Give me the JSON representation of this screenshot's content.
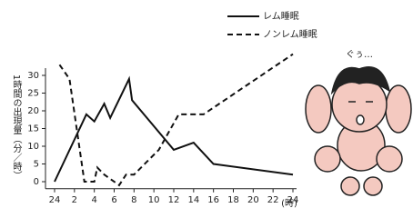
{
  "chart_data": {
    "type": "line",
    "y_label": "1時間の出現量（分／時）",
    "x_unit": "(時)",
    "annotation": "ぐぅ…",
    "xlim": [
      0,
      24
    ],
    "xticks": [
      {
        "value": 0,
        "label": "24"
      },
      2,
      4,
      6,
      8,
      10,
      12,
      14,
      16,
      18,
      20,
      22,
      24
    ],
    "ylim": [
      -2,
      36
    ],
    "yticks": [
      0,
      5,
      10,
      15,
      20,
      25,
      30
    ],
    "series": [
      {
        "name": "レム睡眠",
        "color": "#111111",
        "dash": false,
        "x": [
          0,
          3.2,
          4,
          5,
          5.6,
          7.5,
          7.8,
          12,
          14,
          16,
          24
        ],
        "values": [
          0,
          19,
          17,
          22,
          18,
          29,
          23,
          9,
          11,
          5,
          2
        ]
      },
      {
        "name": "ノンレム睡眠",
        "color": "#111111",
        "dash": true,
        "x": [
          0.5,
          1.5,
          3,
          4,
          4.3,
          5,
          6.5,
          7.2,
          8,
          10.5,
          12.5,
          15,
          24
        ],
        "values": [
          33,
          29,
          0,
          0,
          4,
          2,
          -1,
          2,
          2,
          9,
          19,
          19,
          36
        ]
      }
    ]
  }
}
